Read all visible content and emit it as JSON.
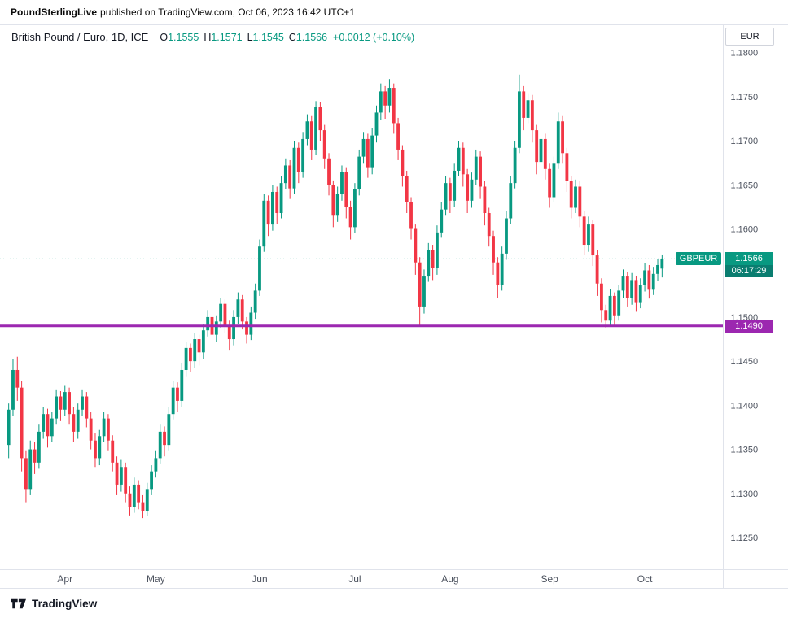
{
  "attribution": {
    "publisher": "PoundSterlingLive",
    "rest": "published on TradingView.com, Oct 06, 2023 16:42 UTC+1"
  },
  "chart_header": {
    "title": "British Pound / Euro, 1D, ICE",
    "open_label": "O",
    "open": "1.1555",
    "high_label": "H",
    "high": "1.1571",
    "low_label": "L",
    "low": "1.1545",
    "close_label": "C",
    "close": "1.1566",
    "change": "+0.0012 (+0.10%)"
  },
  "axis": {
    "currency_label": "EUR"
  },
  "overlays": {
    "symbol_badge": "GBPEUR",
    "last_price": "1.1566",
    "countdown": "06:17:29",
    "support_price": "1.1490"
  },
  "footer": {
    "brand": "TradingView"
  },
  "colors": {
    "up": "#089981",
    "down": "#f23645",
    "countdown_bg": "#0a7d70",
    "support_line": "#9c27b0",
    "axis_text": "#4c525e",
    "border": "#e0e3eb"
  },
  "chart_data": {
    "type": "candlestick",
    "title": "British Pound / Euro",
    "symbol": "GBPEUR",
    "timeframe": "1D",
    "exchange": "ICE",
    "last_price": 1.1566,
    "support_level": 1.149,
    "y_range": [
      1.1214,
      1.1832
    ],
    "y_ticks": [
      1.18,
      1.175,
      1.17,
      1.165,
      1.16,
      1.155,
      1.15,
      1.145,
      1.14,
      1.135,
      1.13,
      1.125
    ],
    "x_ticks": [
      {
        "label": "Apr",
        "i": 13
      },
      {
        "label": "May",
        "i": 34
      },
      {
        "label": "Jun",
        "i": 58
      },
      {
        "label": "Jul",
        "i": 80
      },
      {
        "label": "Aug",
        "i": 102
      },
      {
        "label": "Sep",
        "i": 125
      },
      {
        "label": "Oct",
        "i": 147
      }
    ],
    "candles": [
      [
        1.1355,
        1.1402,
        1.134,
        1.1395
      ],
      [
        1.1395,
        1.1452,
        1.1388,
        1.144
      ],
      [
        1.144,
        1.1455,
        1.1405,
        1.142
      ],
      [
        1.142,
        1.1428,
        1.1325,
        1.134
      ],
      [
        1.134,
        1.1348,
        1.129,
        1.1305
      ],
      [
        1.1305,
        1.136,
        1.1298,
        1.135
      ],
      [
        1.135,
        1.1358,
        1.1322,
        1.1335
      ],
      [
        1.1335,
        1.1378,
        1.1328,
        1.137
      ],
      [
        1.137,
        1.1398,
        1.1362,
        1.139
      ],
      [
        1.139,
        1.1396,
        1.1352,
        1.1365
      ],
      [
        1.1365,
        1.1392,
        1.1358,
        1.1385
      ],
      [
        1.1385,
        1.1418,
        1.1378,
        1.141
      ],
      [
        1.141,
        1.1416,
        1.1382,
        1.1395
      ],
      [
        1.1395,
        1.1422,
        1.1388,
        1.1415
      ],
      [
        1.1415,
        1.142,
        1.1378,
        1.139
      ],
      [
        1.139,
        1.1398,
        1.1358,
        1.137
      ],
      [
        1.137,
        1.1402,
        1.1362,
        1.1395
      ],
      [
        1.1395,
        1.1418,
        1.1388,
        1.141
      ],
      [
        1.141,
        1.1415,
        1.1375,
        1.1385
      ],
      [
        1.1385,
        1.1392,
        1.135,
        1.136
      ],
      [
        1.136,
        1.1368,
        1.133,
        1.134
      ],
      [
        1.134,
        1.1372,
        1.1332,
        1.1365
      ],
      [
        1.1365,
        1.1392,
        1.1358,
        1.1385
      ],
      [
        1.1385,
        1.139,
        1.1348,
        1.136
      ],
      [
        1.136,
        1.1366,
        1.1325,
        1.1335
      ],
      [
        1.1335,
        1.1342,
        1.1298,
        1.131
      ],
      [
        1.131,
        1.1338,
        1.1302,
        1.133
      ],
      [
        1.133,
        1.1335,
        1.129,
        1.13
      ],
      [
        1.13,
        1.1308,
        1.1275,
        1.1285
      ],
      [
        1.1285,
        1.1318,
        1.1278,
        1.131
      ],
      [
        1.131,
        1.1315,
        1.1282,
        1.129
      ],
      [
        1.129,
        1.1298,
        1.1272,
        1.128
      ],
      [
        1.128,
        1.1312,
        1.1274,
        1.1305
      ],
      [
        1.1305,
        1.1332,
        1.1298,
        1.1325
      ],
      [
        1.1325,
        1.1348,
        1.1318,
        1.134
      ],
      [
        1.134,
        1.1378,
        1.1334,
        1.137
      ],
      [
        1.137,
        1.1376,
        1.1342,
        1.1355
      ],
      [
        1.1355,
        1.1398,
        1.1348,
        1.139
      ],
      [
        1.139,
        1.1428,
        1.1384,
        1.142
      ],
      [
        1.142,
        1.1426,
        1.1392,
        1.1405
      ],
      [
        1.1405,
        1.1448,
        1.1398,
        1.144
      ],
      [
        1.144,
        1.1472,
        1.1432,
        1.1465
      ],
      [
        1.1465,
        1.147,
        1.1438,
        1.145
      ],
      [
        1.145,
        1.1482,
        1.1442,
        1.1475
      ],
      [
        1.1475,
        1.148,
        1.1445,
        1.146
      ],
      [
        1.146,
        1.1492,
        1.1452,
        1.1485
      ],
      [
        1.1485,
        1.1508,
        1.1478,
        1.15
      ],
      [
        1.15,
        1.1505,
        1.1468,
        1.148
      ],
      [
        1.148,
        1.1502,
        1.1472,
        1.1495
      ],
      [
        1.1495,
        1.1522,
        1.1488,
        1.1515
      ],
      [
        1.1515,
        1.152,
        1.1482,
        1.149
      ],
      [
        1.149,
        1.1496,
        1.1462,
        1.1475
      ],
      [
        1.1475,
        1.1508,
        1.1468,
        1.15
      ],
      [
        1.15,
        1.1528,
        1.1492,
        1.152
      ],
      [
        1.152,
        1.1525,
        1.1486,
        1.1495
      ],
      [
        1.1495,
        1.15,
        1.147,
        1.148
      ],
      [
        1.148,
        1.1512,
        1.1474,
        1.1505
      ],
      [
        1.1505,
        1.1538,
        1.1498,
        1.153
      ],
      [
        1.153,
        1.1588,
        1.1524,
        1.158
      ],
      [
        1.158,
        1.164,
        1.1574,
        1.1632
      ],
      [
        1.1632,
        1.1638,
        1.1592,
        1.1605
      ],
      [
        1.1605,
        1.165,
        1.1598,
        1.1642
      ],
      [
        1.1642,
        1.1648,
        1.1606,
        1.1618
      ],
      [
        1.1618,
        1.166,
        1.1612,
        1.1652
      ],
      [
        1.1652,
        1.168,
        1.1645,
        1.1672
      ],
      [
        1.1672,
        1.1678,
        1.1634,
        1.1646
      ],
      [
        1.1646,
        1.17,
        1.164,
        1.1692
      ],
      [
        1.1692,
        1.1698,
        1.1652,
        1.1665
      ],
      [
        1.1665,
        1.171,
        1.1658,
        1.1702
      ],
      [
        1.1702,
        1.173,
        1.1695,
        1.1722
      ],
      [
        1.1722,
        1.1728,
        1.1678,
        1.169
      ],
      [
        1.169,
        1.1745,
        1.1684,
        1.1738
      ],
      [
        1.1738,
        1.1744,
        1.17,
        1.1712
      ],
      [
        1.1712,
        1.1718,
        1.1668,
        1.168
      ],
      [
        1.168,
        1.1686,
        1.1638,
        1.165
      ],
      [
        1.165,
        1.1655,
        1.1602,
        1.1615
      ],
      [
        1.1615,
        1.1648,
        1.1608,
        1.164
      ],
      [
        1.164,
        1.1672,
        1.1632,
        1.1665
      ],
      [
        1.1665,
        1.167,
        1.1612,
        1.1625
      ],
      [
        1.1625,
        1.1632,
        1.1588,
        1.1602
      ],
      [
        1.1602,
        1.1652,
        1.1595,
        1.1645
      ],
      [
        1.1645,
        1.169,
        1.1638,
        1.1682
      ],
      [
        1.1682,
        1.171,
        1.1674,
        1.1702
      ],
      [
        1.1702,
        1.1708,
        1.1658,
        1.167
      ],
      [
        1.167,
        1.1714,
        1.1662,
        1.1706
      ],
      [
        1.1706,
        1.174,
        1.1698,
        1.1732
      ],
      [
        1.1732,
        1.1765,
        1.1724,
        1.1756
      ],
      [
        1.1756,
        1.1762,
        1.1725,
        1.174
      ],
      [
        1.174,
        1.177,
        1.1732,
        1.176
      ],
      [
        1.176,
        1.1765,
        1.1708,
        1.172
      ],
      [
        1.172,
        1.1726,
        1.1678,
        1.169
      ],
      [
        1.169,
        1.1695,
        1.1648,
        1.166
      ],
      [
        1.166,
        1.1666,
        1.1618,
        1.163
      ],
      [
        1.163,
        1.1636,
        1.1588,
        1.16
      ],
      [
        1.16,
        1.1605,
        1.1548,
        1.1562
      ],
      [
        1.1562,
        1.1568,
        1.149,
        1.1512
      ],
      [
        1.1512,
        1.1554,
        1.1504,
        1.1546
      ],
      [
        1.1546,
        1.1584,
        1.154,
        1.1576
      ],
      [
        1.1576,
        1.1582,
        1.1542,
        1.1556
      ],
      [
        1.1556,
        1.1604,
        1.1548,
        1.1596
      ],
      [
        1.1596,
        1.163,
        1.159,
        1.1622
      ],
      [
        1.1622,
        1.166,
        1.1615,
        1.1652
      ],
      [
        1.1652,
        1.1658,
        1.1618,
        1.1632
      ],
      [
        1.1632,
        1.1674,
        1.1625,
        1.1666
      ],
      [
        1.1666,
        1.17,
        1.166,
        1.1692
      ],
      [
        1.1692,
        1.1698,
        1.1648,
        1.1662
      ],
      [
        1.1662,
        1.1668,
        1.1618,
        1.1632
      ],
      [
        1.1632,
        1.1664,
        1.1624,
        1.1656
      ],
      [
        1.1656,
        1.169,
        1.165,
        1.1682
      ],
      [
        1.1682,
        1.1688,
        1.1634,
        1.1648
      ],
      [
        1.1648,
        1.1654,
        1.1604,
        1.1618
      ],
      [
        1.1618,
        1.1624,
        1.158,
        1.1592
      ],
      [
        1.1592,
        1.1598,
        1.1548,
        1.1562
      ],
      [
        1.1562,
        1.1568,
        1.1522,
        1.1536
      ],
      [
        1.1536,
        1.158,
        1.153,
        1.1572
      ],
      [
        1.1572,
        1.162,
        1.1565,
        1.1612
      ],
      [
        1.1612,
        1.166,
        1.1606,
        1.1652
      ],
      [
        1.1652,
        1.17,
        1.1646,
        1.1692
      ],
      [
        1.1692,
        1.1775,
        1.1686,
        1.1756
      ],
      [
        1.1756,
        1.1762,
        1.1712,
        1.1726
      ],
      [
        1.1726,
        1.1754,
        1.172,
        1.1746
      ],
      [
        1.1746,
        1.1752,
        1.1698,
        1.1712
      ],
      [
        1.1712,
        1.1718,
        1.1662,
        1.1676
      ],
      [
        1.1676,
        1.171,
        1.167,
        1.1702
      ],
      [
        1.1702,
        1.1708,
        1.1656,
        1.1668
      ],
      [
        1.1668,
        1.1674,
        1.1624,
        1.1636
      ],
      [
        1.1636,
        1.1682,
        1.163,
        1.1674
      ],
      [
        1.1674,
        1.1732,
        1.1668,
        1.1722
      ],
      [
        1.1722,
        1.1728,
        1.1674,
        1.1686
      ],
      [
        1.1686,
        1.1692,
        1.1642,
        1.1654
      ],
      [
        1.1654,
        1.166,
        1.1612,
        1.1624
      ],
      [
        1.1624,
        1.1656,
        1.1618,
        1.1648
      ],
      [
        1.1648,
        1.1654,
        1.1602,
        1.1614
      ],
      [
        1.1614,
        1.162,
        1.157,
        1.1582
      ],
      [
        1.1582,
        1.1614,
        1.1574,
        1.1605
      ],
      [
        1.1605,
        1.161,
        1.1558,
        1.157
      ],
      [
        1.157,
        1.1576,
        1.1524,
        1.1538
      ],
      [
        1.1538,
        1.1544,
        1.1494,
        1.1508
      ],
      [
        1.1508,
        1.1514,
        1.1488,
        1.1496
      ],
      [
        1.1496,
        1.1532,
        1.149,
        1.1524
      ],
      [
        1.1524,
        1.1528,
        1.1489,
        1.1502
      ],
      [
        1.1502,
        1.1536,
        1.1496,
        1.153
      ],
      [
        1.153,
        1.1554,
        1.1522,
        1.1546
      ],
      [
        1.1546,
        1.1551,
        1.1512,
        1.1522
      ],
      [
        1.1522,
        1.155,
        1.1514,
        1.1542
      ],
      [
        1.1542,
        1.1547,
        1.1506,
        1.1516
      ],
      [
        1.1516,
        1.1544,
        1.151,
        1.1536
      ],
      [
        1.1536,
        1.1561,
        1.1529,
        1.1553
      ],
      [
        1.1553,
        1.1559,
        1.1521,
        1.1531
      ],
      [
        1.1531,
        1.1557,
        1.1525,
        1.1549
      ],
      [
        1.1549,
        1.1566,
        1.1541,
        1.1559
      ],
      [
        1.1555,
        1.1571,
        1.1545,
        1.1566
      ]
    ]
  }
}
